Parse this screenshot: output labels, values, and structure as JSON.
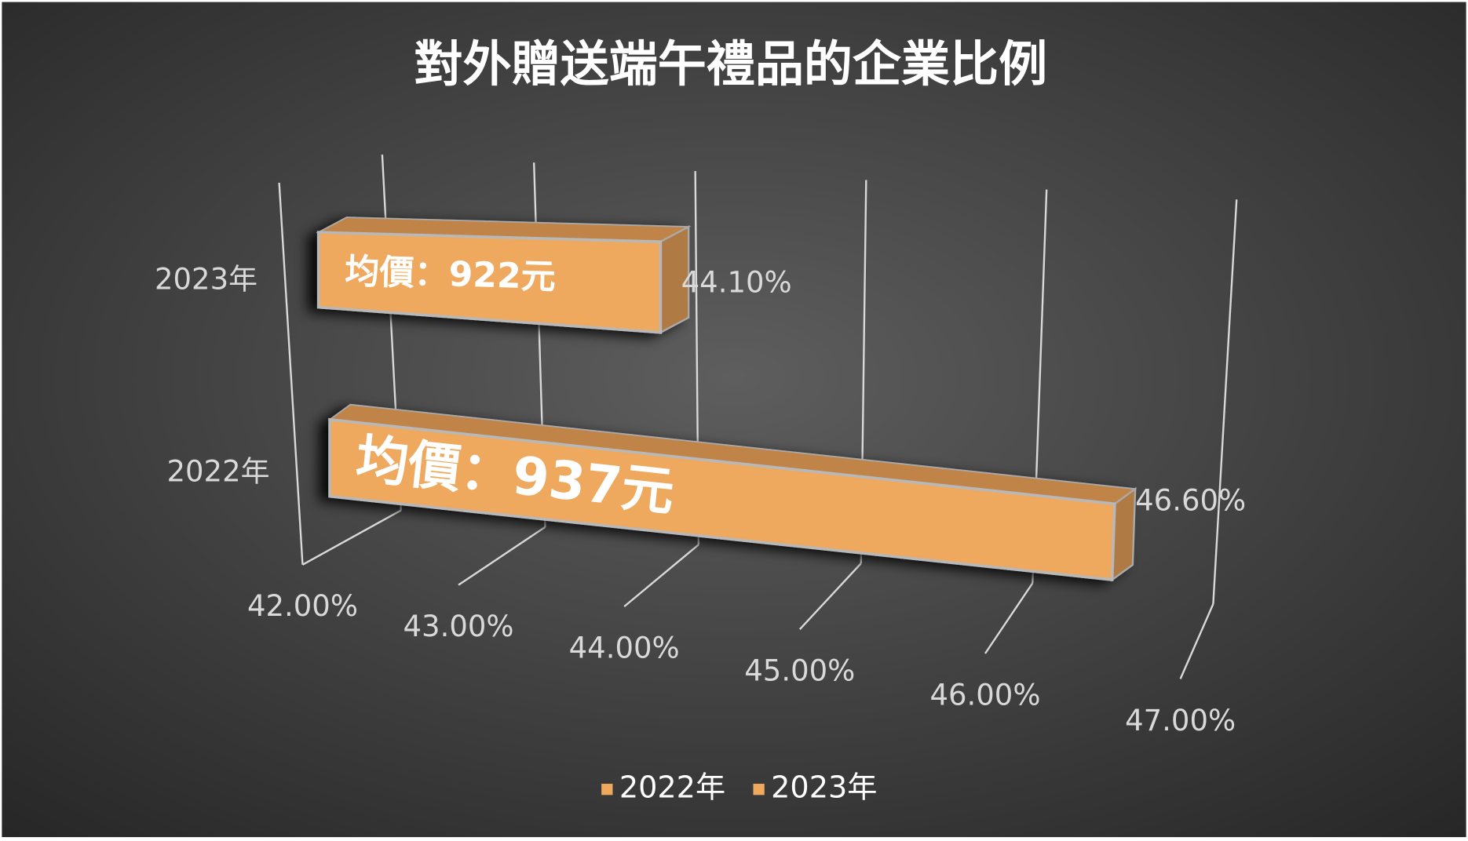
{
  "chart_data": {
    "type": "bar3d",
    "title": "對外贈送端午禮品的企業比例",
    "categories": [
      "2022年",
      "2023年"
    ],
    "series": [
      {
        "name": "2022年",
        "color": "#eea95e",
        "values": [
          46.6,
          null
        ],
        "value_labels": [
          "46.60%",
          null
        ],
        "annotations": [
          "均價：937元",
          null
        ]
      },
      {
        "name": "2023年",
        "color": "#eea95e",
        "values": [
          null,
          44.1
        ],
        "value_labels": [
          null,
          "44.10%"
        ],
        "annotations": [
          null,
          "均價：922元"
        ]
      }
    ],
    "xlim": [
      42,
      47
    ],
    "xticks": [
      {
        "value": 42,
        "label": "42.00%"
      },
      {
        "value": 43,
        "label": "43.00%"
      },
      {
        "value": 44,
        "label": "44.00%"
      },
      {
        "value": 45,
        "label": "45.00%"
      },
      {
        "value": 46,
        "label": "46.00%"
      },
      {
        "value": 47,
        "label": "47.00%"
      }
    ],
    "grid": true,
    "legend": "bottom"
  }
}
